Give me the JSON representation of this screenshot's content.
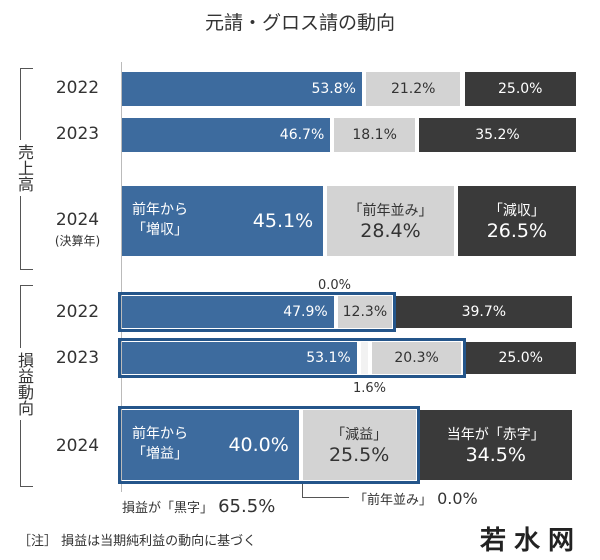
{
  "title": "元請・グロス請の動向",
  "colors": {
    "increase": "#3d6b9e",
    "flat": "#d3d3d3",
    "decrease": "#3a3a3a",
    "flat_pl": "#f2f2f2",
    "outline": "#24558a"
  },
  "chart_data": {
    "type": "bar",
    "orientation": "horizontal",
    "stacked": true,
    "xlim": [
      0,
      100
    ],
    "groups": [
      {
        "name": "売上高",
        "rows": [
          {
            "year": "2022",
            "sub": "",
            "values": [
              53.8,
              21.2,
              25.0
            ],
            "labels": [
              "53.8%",
              "21.2%",
              "25.0%"
            ]
          },
          {
            "year": "2023",
            "sub": "",
            "values": [
              46.7,
              18.1,
              35.2
            ],
            "labels": [
              "46.7%",
              "18.1%",
              "35.2%"
            ]
          },
          {
            "year": "2024",
            "sub": "(決算年)",
            "values": [
              45.1,
              28.4,
              26.5
            ],
            "labels": [
              "45.1%",
              "28.4%",
              "26.5%"
            ],
            "categories": [
              "前年から\n「増収」",
              "「前年並み」",
              "「減収」"
            ]
          }
        ]
      },
      {
        "name": "損益動向",
        "rows": [
          {
            "year": "2022",
            "values": [
              47.9,
              0.0,
              12.3,
              39.7
            ],
            "labels": [
              "47.9%",
              "",
              "12.3%",
              "39.7%"
            ]
          },
          {
            "year": "2023",
            "values": [
              53.1,
              1.6,
              20.3,
              25.0
            ],
            "labels": [
              "53.1%",
              "",
              "20.3%",
              "25.0%"
            ]
          },
          {
            "year": "2024",
            "values": [
              40.0,
              0.0,
              25.5,
              34.5
            ],
            "labels": [
              "40.0%",
              "",
              "25.5%",
              "34.5%"
            ],
            "categories": [
              "前年から\n「増益」",
              "",
              "「減益」",
              "当年が「赤字」"
            ]
          }
        ]
      }
    ],
    "annotations": {
      "pl2022_flat": "0.0%",
      "pl2023_flat": "1.6%",
      "black_label": "損益が「黒字」",
      "black_value": "65.5%",
      "flat_label": "「前年並み」",
      "flat_value": "0.0%"
    }
  },
  "footnote": "［注］ 損益は当期純利益の動向に基づく",
  "watermark": "若水网"
}
